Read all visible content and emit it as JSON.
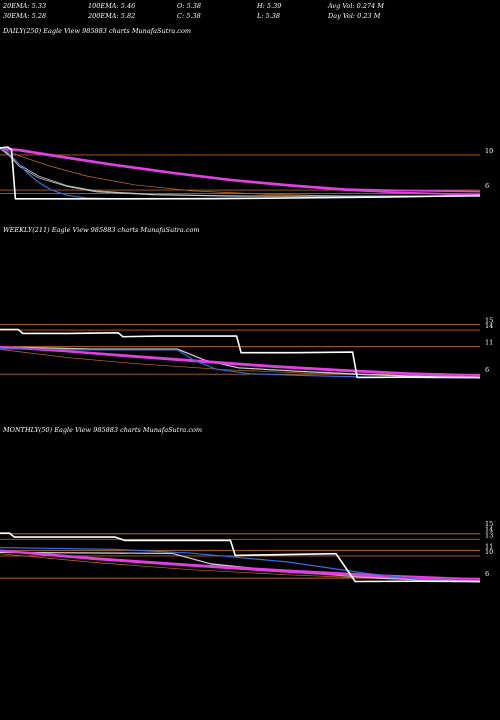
{
  "header": {
    "row1": [
      "20EMA: 5.33",
      "100EMA: 5.46",
      "O: 5.38",
      "H: 5.39",
      "Avg Vol: 0.274  M"
    ],
    "row2": [
      "30EMA: 5.28",
      "200EMA: 5.82",
      "C: 5.38",
      "L: 5.38",
      "Day Vol: 0.23  M"
    ]
  },
  "colors": {
    "background": "#000000",
    "price": "#ffffff",
    "ema_fast": "#2f6fe0",
    "ema_slow": "#e040e0",
    "ema_mid": "#c8c8c8",
    "ema_orange": "#c87020",
    "level_line": "#b8621a"
  },
  "chart_data": [
    {
      "type": "line",
      "title": "DAILY(250) Eagle   View  985883 charts MunafaSutra.com",
      "x_range": [
        0,
        250
      ],
      "ylim": [
        3.5,
        12.5
      ],
      "y_ticks": [
        {
          "value": 10,
          "label": "10"
        },
        {
          "value": 6,
          "label": "6"
        }
      ],
      "levels": [
        10,
        6,
        5.6
      ],
      "series": [
        {
          "key": "price",
          "points": [
            [
              0,
              10.8
            ],
            [
              4,
              10.9
            ],
            [
              6,
              10.6
            ],
            [
              8,
              5.0
            ],
            [
              60,
              5.0
            ],
            [
              110,
              5.02
            ],
            [
              150,
              5.1
            ],
            [
              200,
              5.2
            ],
            [
              250,
              5.38
            ]
          ]
        },
        {
          "key": "ema_slow",
          "points": [
            [
              0,
              10.8
            ],
            [
              10,
              10.6
            ],
            [
              30,
              9.9
            ],
            [
              60,
              8.9
            ],
            [
              90,
              8.0
            ],
            [
              120,
              7.2
            ],
            [
              150,
              6.6
            ],
            [
              180,
              6.1
            ],
            [
              210,
              5.95
            ],
            [
              250,
              5.82
            ]
          ]
        },
        {
          "key": "ema_slow",
          "points": [
            [
              0,
              10.7
            ],
            [
              10,
              10.5
            ],
            [
              30,
              9.8
            ],
            [
              60,
              8.8
            ],
            [
              90,
              7.9
            ],
            [
              120,
              7.1
            ],
            [
              150,
              6.5
            ],
            [
              180,
              6.0
            ],
            [
              210,
              5.7
            ],
            [
              250,
              5.46
            ]
          ]
        },
        {
          "key": "ema_mid",
          "points": [
            [
              0,
              10.8
            ],
            [
              5,
              10.0
            ],
            [
              10,
              8.9
            ],
            [
              20,
              7.6
            ],
            [
              35,
              6.5
            ],
            [
              50,
              5.9
            ],
            [
              80,
              5.5
            ],
            [
              120,
              5.35
            ],
            [
              250,
              5.3
            ]
          ]
        },
        {
          "key": "ema_mid",
          "points": [
            [
              0,
              10.7
            ],
            [
              5,
              9.9
            ],
            [
              10,
              8.7
            ],
            [
              20,
              7.4
            ],
            [
              35,
              6.4
            ],
            [
              50,
              5.8
            ],
            [
              80,
              5.45
            ],
            [
              120,
              5.3
            ],
            [
              250,
              5.28
            ]
          ]
        },
        {
          "key": "ema_orange",
          "points": [
            [
              0,
              10.8
            ],
            [
              10,
              9.9
            ],
            [
              25,
              8.8
            ],
            [
              45,
              7.6
            ],
            [
              70,
              6.6
            ],
            [
              100,
              5.9
            ],
            [
              140,
              5.5
            ],
            [
              180,
              5.35
            ],
            [
              250,
              5.3
            ]
          ]
        },
        {
          "key": "ema_fast",
          "points": [
            [
              0,
              10.8
            ],
            [
              4,
              10.3
            ],
            [
              8,
              9.4
            ],
            [
              14,
              8.0
            ],
            [
              20,
              6.9
            ],
            [
              27,
              6.0
            ],
            [
              35,
              5.4
            ],
            [
              45,
              5.1
            ],
            [
              60,
              5.02
            ],
            [
              120,
              5.05
            ],
            [
              250,
              5.33
            ]
          ]
        }
      ]
    },
    {
      "type": "line",
      "title": "WEEKLY(211) Eagle   View  985883 charts MunafaSutra.com",
      "x_range": [
        0,
        211
      ],
      "ylim": [
        3.5,
        18
      ],
      "y_ticks": [
        {
          "value": 15,
          "label": "15"
        },
        {
          "value": 14,
          "label": "14"
        },
        {
          "value": 11,
          "label": "11"
        },
        {
          "value": 6,
          "label": "6"
        }
      ],
      "levels": [
        15,
        14,
        11,
        6
      ],
      "series": [
        {
          "key": "price",
          "points": [
            [
              0,
              14.1
            ],
            [
              8,
              14.1
            ],
            [
              10,
              13.4
            ],
            [
              30,
              13.4
            ],
            [
              52,
              13.5
            ],
            [
              54,
              12.8
            ],
            [
              70,
              12.9
            ],
            [
              100,
              12.9
            ],
            [
              104,
              12.9
            ],
            [
              106,
              9.9
            ],
            [
              130,
              9.9
            ],
            [
              155,
              10.0
            ],
            [
              157,
              5.4
            ],
            [
              175,
              5.45
            ],
            [
              211,
              5.38
            ]
          ]
        },
        {
          "key": "ema_slow",
          "points": [
            [
              0,
              11.0
            ],
            [
              30,
              10.2
            ],
            [
              60,
              9.3
            ],
            [
              90,
              8.4
            ],
            [
              120,
              7.5
            ],
            [
              150,
              6.8
            ],
            [
              180,
              6.2
            ],
            [
              211,
              5.82
            ]
          ]
        },
        {
          "key": "ema_slow",
          "points": [
            [
              0,
              10.9
            ],
            [
              30,
              10.1
            ],
            [
              60,
              9.1
            ],
            [
              90,
              8.2
            ],
            [
              120,
              7.3
            ],
            [
              150,
              6.6
            ],
            [
              180,
              6.0
            ],
            [
              211,
              5.46
            ]
          ]
        },
        {
          "key": "ema_mid",
          "points": [
            [
              0,
              11.0
            ],
            [
              40,
              10.6
            ],
            [
              78,
              10.6
            ],
            [
              90,
              8.6
            ],
            [
              105,
              7.2
            ],
            [
              130,
              6.6
            ],
            [
              160,
              6.0
            ],
            [
              211,
              5.3
            ]
          ]
        },
        {
          "key": "ema_mid",
          "points": [
            [
              0,
              10.9
            ],
            [
              40,
              10.5
            ],
            [
              78,
              10.5
            ],
            [
              90,
              8.5
            ],
            [
              105,
              7.1
            ],
            [
              130,
              6.5
            ],
            [
              160,
              5.9
            ],
            [
              211,
              5.28
            ]
          ]
        },
        {
          "key": "ema_orange",
          "points": [
            [
              0,
              10.5
            ],
            [
              30,
              9.0
            ],
            [
              60,
              7.9
            ],
            [
              100,
              6.8
            ],
            [
              140,
              6.1
            ],
            [
              180,
              5.7
            ],
            [
              211,
              5.5
            ]
          ]
        },
        {
          "key": "ema_fast",
          "points": [
            [
              0,
              10.6
            ],
            [
              40,
              10.4
            ],
            [
              78,
              10.4
            ],
            [
              85,
              8.6
            ],
            [
              95,
              6.9
            ],
            [
              110,
              6.1
            ],
            [
              130,
              5.8
            ],
            [
              160,
              5.5
            ],
            [
              211,
              5.33
            ]
          ]
        }
      ]
    },
    {
      "type": "line",
      "title": "MONTHLY(50) Eagle   View  985883 charts MunafaSutra.com",
      "x_range": [
        0,
        50
      ],
      "ylim": [
        3.5,
        19
      ],
      "y_ticks": [
        {
          "value": 15,
          "label": "15"
        },
        {
          "value": 14,
          "label": "14"
        },
        {
          "value": 13,
          "label": "13"
        },
        {
          "value": 11,
          "label": "11"
        },
        {
          "value": 10,
          "label": "10"
        },
        {
          "value": 6,
          "label": "6"
        }
      ],
      "levels": [
        14,
        13,
        11,
        10,
        6
      ],
      "series": [
        {
          "key": "price",
          "points": [
            [
              0,
              14.1
            ],
            [
              1,
              14.1
            ],
            [
              1.5,
              13.4
            ],
            [
              12,
              13.4
            ],
            [
              13,
              12.8
            ],
            [
              24,
              12.8
            ],
            [
              24.5,
              10.1
            ],
            [
              35,
              10.4
            ],
            [
              37,
              5.4
            ],
            [
              44,
              5.45
            ],
            [
              50,
              5.38
            ]
          ]
        },
        {
          "key": "ema_slow",
          "points": [
            [
              0,
              11.0
            ],
            [
              10,
              9.6
            ],
            [
              20,
              8.4
            ],
            [
              30,
              7.4
            ],
            [
              40,
              6.5
            ],
            [
              50,
              5.82
            ]
          ]
        },
        {
          "key": "ema_slow",
          "points": [
            [
              0,
              10.9
            ],
            [
              10,
              9.4
            ],
            [
              20,
              8.2
            ],
            [
              30,
              7.1
            ],
            [
              40,
              6.2
            ],
            [
              50,
              5.46
            ]
          ]
        },
        {
          "key": "ema_mid",
          "points": [
            [
              0,
              10.7
            ],
            [
              18,
              10.5
            ],
            [
              22,
              8.6
            ],
            [
              30,
              7.2
            ],
            [
              40,
              6.0
            ],
            [
              50,
              5.3
            ]
          ]
        },
        {
          "key": "ema_mid",
          "points": [
            [
              0,
              10.6
            ],
            [
              18,
              10.4
            ],
            [
              22,
              8.5
            ],
            [
              30,
              7.1
            ],
            [
              40,
              5.9
            ],
            [
              50,
              5.28
            ]
          ]
        },
        {
          "key": "ema_orange",
          "points": [
            [
              0,
              10.4
            ],
            [
              10,
              8.8
            ],
            [
              20,
              7.5
            ],
            [
              30,
              6.6
            ],
            [
              40,
              5.9
            ],
            [
              50,
              5.5
            ]
          ]
        },
        {
          "key": "ema_fast",
          "points": [
            [
              0,
              11.5
            ],
            [
              12,
              11.2
            ],
            [
              20,
              10.5
            ],
            [
              30,
              8.9
            ],
            [
              38,
              6.9
            ],
            [
              44,
              5.7
            ],
            [
              50,
              5.33
            ]
          ]
        }
      ]
    }
  ]
}
